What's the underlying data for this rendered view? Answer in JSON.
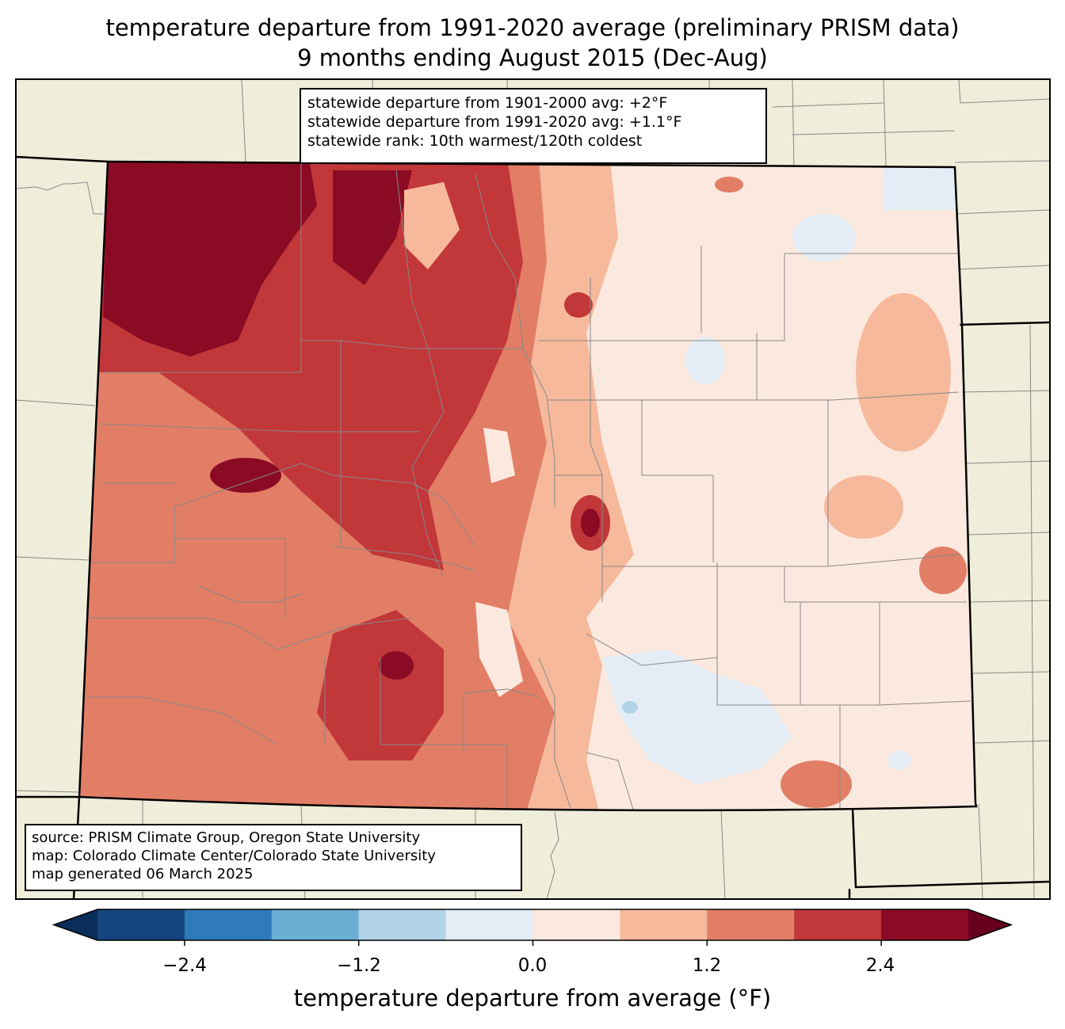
{
  "title": {
    "line1": "temperature departure from 1991-2020 average (preliminary PRISM data)",
    "line2": "9 months ending August 2015 (Dec-Aug)"
  },
  "stats_box": {
    "line1": "statewide departure from 1901-2000 avg: +2°F",
    "line2": "statewide departure from 1991-2020 avg: +1.1°F",
    "line3": "statewide rank: 10th warmest/120th coldest"
  },
  "source_box": {
    "line1": "source: PRISM Climate Group, Oregon State University",
    "line2": "map: Colorado Climate Center/Colorado State University",
    "line3": "map generated 06 March 2025"
  },
  "colorbar": {
    "label": "temperature departure from average (°F)",
    "ticks": [
      "−2.4",
      "−1.2",
      "0.0",
      "1.2",
      "2.4"
    ],
    "levels": [
      -3.0,
      -2.4,
      -1.8,
      -1.2,
      -0.6,
      0.0,
      0.6,
      1.2,
      1.8,
      2.4,
      3.0
    ],
    "colors": [
      "#14457e",
      "#2f7ab8",
      "#6aaed3",
      "#b1d4e7",
      "#e4edf5",
      "#fbe9df",
      "#f7b99c",
      "#e27e66",
      "#c2373a",
      "#8b0b25"
    ],
    "under_color": "#0a2d5c",
    "over_color": "#67001f"
  },
  "colors": {
    "land_background": "#efeedb",
    "county_lines": "#888888",
    "state_lines": "#000000"
  }
}
